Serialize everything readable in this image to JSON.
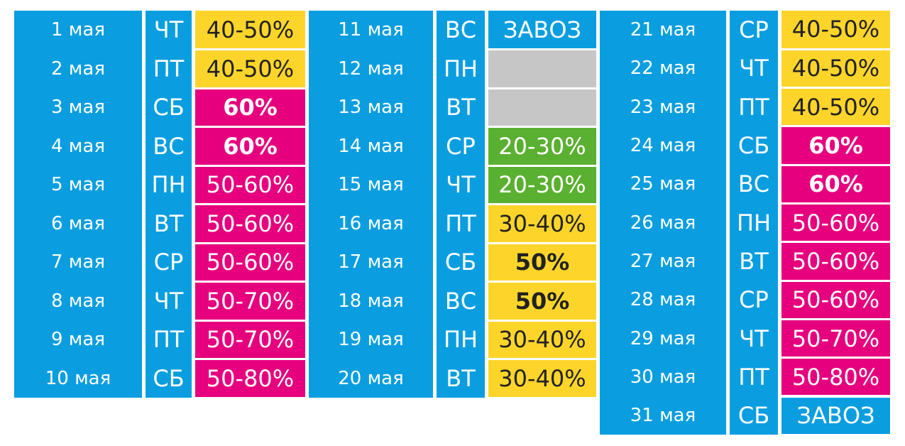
{
  "colors": {
    "blue": "#0a9ee0",
    "yellow": "#fdd52a",
    "magenta": "#e6007e",
    "green": "#5ab030",
    "gray": "#c6c6c6",
    "white": "#ffffff",
    "dark_text": "#222222"
  },
  "columns": [
    {
      "rows": [
        {
          "date": "1 мая",
          "day": "ЧТ",
          "discount": "40-50%",
          "style": "yellow"
        },
        {
          "date": "2 мая",
          "day": "ПТ",
          "discount": "40-50%",
          "style": "yellow"
        },
        {
          "date": "3 мая",
          "day": "СБ",
          "discount": "60%",
          "style": "magenta-bold"
        },
        {
          "date": "4 мая",
          "day": "ВС",
          "discount": "60%",
          "style": "magenta-bold"
        },
        {
          "date": "5 мая",
          "day": "ПН",
          "discount": "50-60%",
          "style": "magenta"
        },
        {
          "date": "6 мая",
          "day": "ВТ",
          "discount": "50-60%",
          "style": "magenta"
        },
        {
          "date": "7 мая",
          "day": "СР",
          "discount": "50-60%",
          "style": "magenta"
        },
        {
          "date": "8 мая",
          "day": "ЧТ",
          "discount": "50-70%",
          "style": "magenta"
        },
        {
          "date": "9 мая",
          "day": "ПТ",
          "discount": "50-70%",
          "style": "magenta"
        },
        {
          "date": "10 мая",
          "day": "СБ",
          "discount": "50-80%",
          "style": "magenta"
        }
      ]
    },
    {
      "rows": [
        {
          "date": "11 мая",
          "day": "ВС",
          "discount": "ЗАВОЗ",
          "style": "blue"
        },
        {
          "date": "12 мая",
          "day": "ПН",
          "discount": "",
          "style": "gray"
        },
        {
          "date": "13 мая",
          "day": "ВТ",
          "discount": "",
          "style": "gray"
        },
        {
          "date": "14 мая",
          "day": "СР",
          "discount": "20-30%",
          "style": "green"
        },
        {
          "date": "15 мая",
          "day": "ЧТ",
          "discount": "20-30%",
          "style": "green"
        },
        {
          "date": "16 мая",
          "day": "ПТ",
          "discount": "30-40%",
          "style": "yellow"
        },
        {
          "date": "17 мая",
          "day": "СБ",
          "discount": "50%",
          "style": "yellow-bold"
        },
        {
          "date": "18 мая",
          "day": "ВС",
          "discount": "50%",
          "style": "yellow-bold"
        },
        {
          "date": "19 мая",
          "day": "ПН",
          "discount": "30-40%",
          "style": "yellow"
        },
        {
          "date": "20 мая",
          "day": "ВТ",
          "discount": "30-40%",
          "style": "yellow"
        }
      ]
    },
    {
      "rows": [
        {
          "date": "21 мая",
          "day": "СР",
          "discount": "40-50%",
          "style": "yellow"
        },
        {
          "date": "22 мая",
          "day": "ЧТ",
          "discount": "40-50%",
          "style": "yellow"
        },
        {
          "date": "23 мая",
          "day": "ПТ",
          "discount": "40-50%",
          "style": "yellow"
        },
        {
          "date": "24 мая",
          "day": "СБ",
          "discount": "60%",
          "style": "magenta-bold"
        },
        {
          "date": "25 мая",
          "day": "ВС",
          "discount": "60%",
          "style": "magenta-bold"
        },
        {
          "date": "26 мая",
          "day": "ПН",
          "discount": "50-60%",
          "style": "magenta"
        },
        {
          "date": "27 мая",
          "day": "ВТ",
          "discount": "50-60%",
          "style": "magenta"
        },
        {
          "date": "28 мая",
          "day": "СР",
          "discount": "50-60%",
          "style": "magenta"
        },
        {
          "date": "29 мая",
          "day": "ЧТ",
          "discount": "50-70%",
          "style": "magenta"
        },
        {
          "date": "30 мая",
          "day": "ПТ",
          "discount": "50-80%",
          "style": "magenta"
        },
        {
          "date": "31 мая",
          "day": "СБ",
          "discount": "ЗАВОЗ",
          "style": "blue"
        }
      ]
    }
  ]
}
